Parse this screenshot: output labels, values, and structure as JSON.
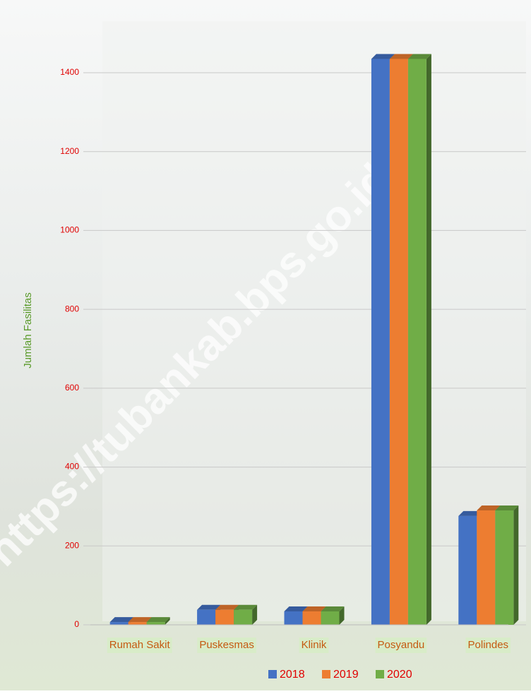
{
  "chart_data": {
    "type": "bar3d",
    "y_label": "Jumlah Fasilitas",
    "watermark": "https://tubankab.bps.go.id",
    "categories": [
      "Rumah Sakit",
      "Puskesmas",
      "Klinik",
      "Posyandu",
      "Polindes"
    ],
    "series": [
      {
        "name": "2018",
        "color": "#4472c4",
        "values": [
          7,
          38,
          34,
          1435,
          276
        ]
      },
      {
        "name": "2019",
        "color": "#ed7d31",
        "values": [
          7,
          38,
          34,
          1435,
          290
        ]
      },
      {
        "name": "2020",
        "color": "#70ad47",
        "values": [
          7,
          38,
          34,
          1435,
          290
        ]
      }
    ],
    "ylim": [
      0,
      1400
    ],
    "yticks": [
      0,
      200,
      400,
      600,
      800,
      1000,
      1200,
      1400
    ],
    "grid": true,
    "legend": "bottom"
  }
}
